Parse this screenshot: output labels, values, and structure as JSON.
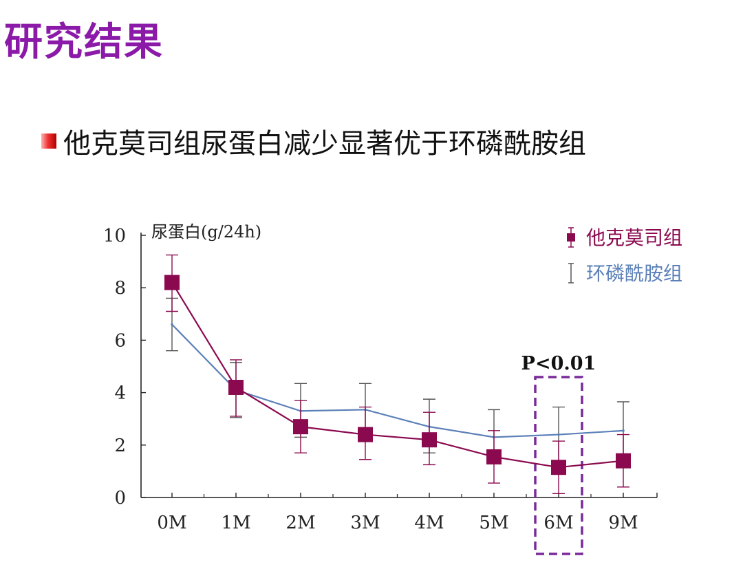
{
  "slide": {
    "title": "研究结果",
    "bullet": "他克莫司组尿蛋白减少显著优于环磷酰胺组"
  },
  "colors": {
    "title": "#8b1aa8",
    "tacrolimus": "#8b0a4f",
    "cyclophosphamide": "#5b80b8",
    "highlight": "#7a2a9a"
  },
  "chart_data": {
    "type": "line",
    "ylabel": "尿蛋白(g/24h)",
    "ylim": [
      0,
      10
    ],
    "yticks": [
      "0",
      "2",
      "4",
      "6",
      "8",
      "10"
    ],
    "categories": [
      "0M",
      "1M",
      "2M",
      "3M",
      "4M",
      "5M",
      "6M",
      "9M"
    ],
    "series": [
      {
        "name": "他克莫司组",
        "marker": "square",
        "values": [
          8.2,
          4.2,
          2.7,
          2.4,
          2.2,
          1.55,
          1.15,
          1.4
        ],
        "err_low": [
          7.1,
          3.1,
          1.7,
          1.45,
          1.25,
          0.55,
          0.15,
          0.4
        ],
        "err_high": [
          9.25,
          5.25,
          3.7,
          3.45,
          3.25,
          2.55,
          2.15,
          2.4
        ]
      },
      {
        "name": "环磷酰胺组",
        "marker": "none",
        "values": [
          6.6,
          4.1,
          3.3,
          3.35,
          2.7,
          2.3,
          2.4,
          2.55
        ],
        "err_low": [
          5.6,
          3.05,
          2.3,
          2.35,
          1.7,
          1.3,
          1.4,
          1.55
        ],
        "err_high": [
          7.6,
          5.15,
          4.35,
          4.35,
          3.75,
          3.35,
          3.45,
          3.65
        ]
      }
    ],
    "annotation": {
      "label": "P<0.01",
      "category": "6M",
      "style": "dashed-box"
    },
    "legend_position": "top-right",
    "grid": false
  }
}
